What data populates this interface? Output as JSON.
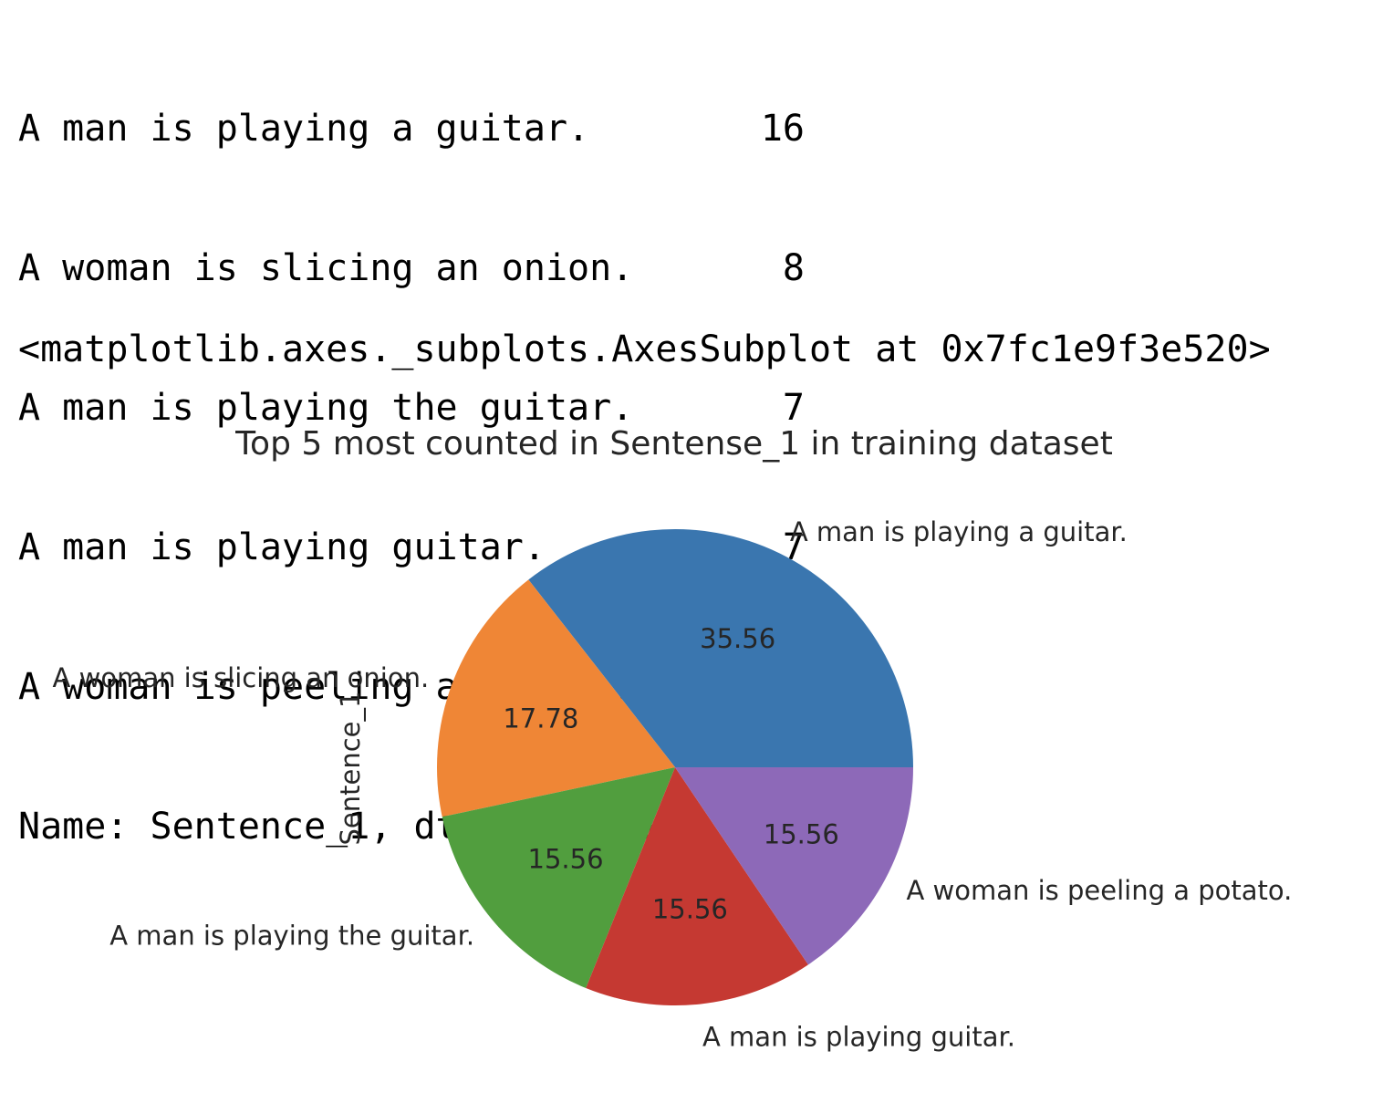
{
  "output": {
    "rows": [
      {
        "label": "A man is playing a guitar.",
        "count": "16"
      },
      {
        "label": "A woman is slicing an onion.",
        "count": "8"
      },
      {
        "label": "A man is playing the guitar.",
        "count": "7"
      },
      {
        "label": "A man is playing guitar.",
        "count": "7"
      },
      {
        "label": "A woman is peeling a potato.",
        "count": "7"
      }
    ],
    "footer": "Name: Sentence_1, dtype: int64",
    "repr": "<matplotlib.axes._subplots.AxesSubplot at 0x7fc1e9f3e520>"
  },
  "chart_data": {
    "type": "pie",
    "title": "Top 5 most counted in Sentense_1 in training dataset",
    "ylabel": "Sentence_1",
    "categories": [
      "A man is playing a guitar.",
      "A woman is slicing an onion.",
      "A man is playing the guitar.",
      "A man is playing guitar.",
      "A woman is peeling a potato."
    ],
    "values": [
      16,
      8,
      7,
      7,
      7
    ],
    "pct_labels": [
      "35.56",
      "17.78",
      "15.56",
      "15.56",
      "15.56"
    ],
    "colors": [
      "#3a76af",
      "#ef8636",
      "#519e3e",
      "#c53932",
      "#8d69b8"
    ],
    "start_angle": 0,
    "direction": "counterclockwise"
  }
}
